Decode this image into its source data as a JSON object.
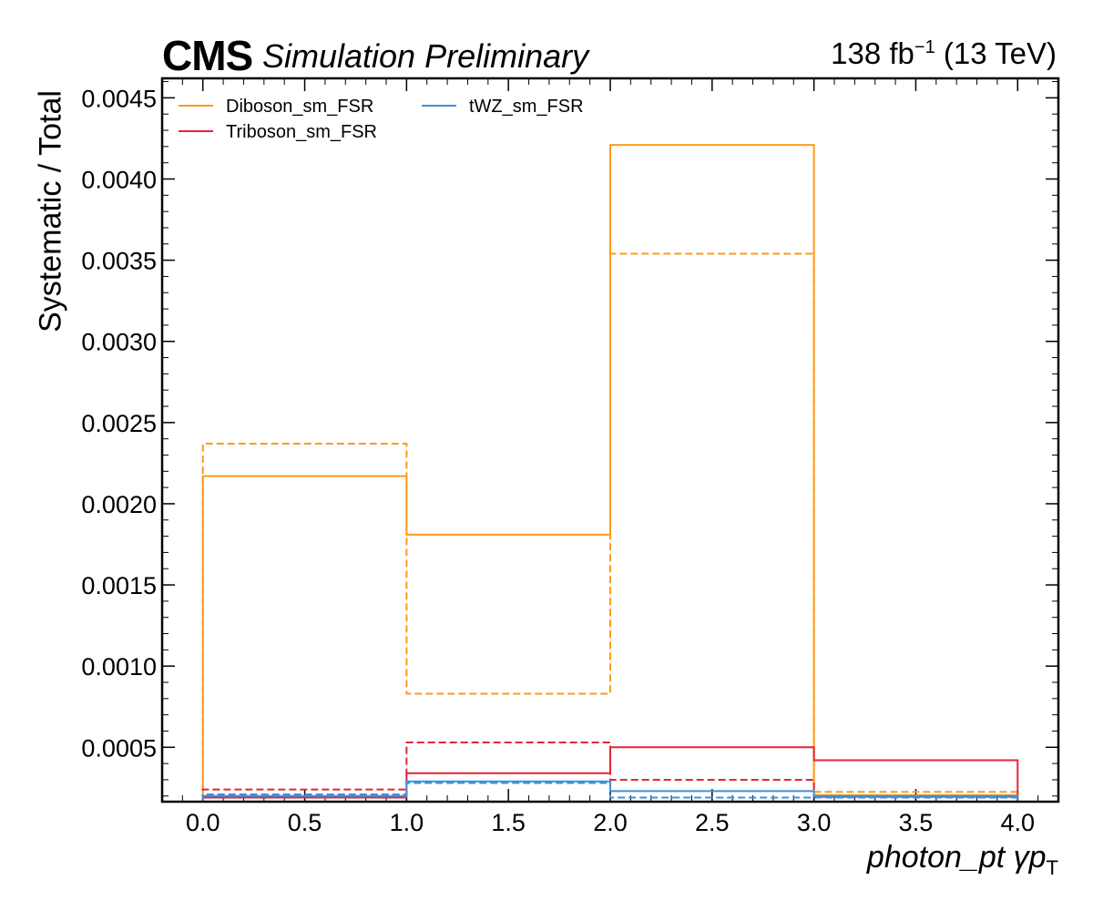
{
  "header": {
    "experiment": "CMS",
    "status": "Simulation Preliminary",
    "lumi_value": "138 fb",
    "lumi_exp": "−1",
    "energy": "(13 TeV)"
  },
  "chart_data": {
    "type": "step",
    "xlabel": "photon_pt   γp",
    "xlabel_sub": "T",
    "ylabel": "Systematic / Total",
    "xlim": [
      -0.2,
      4.2
    ],
    "ylim": [
      0.000165,
      0.00462
    ],
    "x_ticks": [
      "0.0",
      "0.5",
      "1.0",
      "1.5",
      "2.0",
      "2.5",
      "3.0",
      "3.5",
      "4.0"
    ],
    "y_ticks": [
      "0.0005",
      "0.0010",
      "0.0015",
      "0.0020",
      "0.0025",
      "0.0030",
      "0.0035",
      "0.0040",
      "0.0045"
    ],
    "bin_edges": [
      0,
      1,
      2,
      3,
      4
    ],
    "legend": {
      "placement": "top-left",
      "ncol": 2
    },
    "series": [
      {
        "name": "Diboson_sm_FSR",
        "color": "#ff9a1a",
        "up": [
          0.00217,
          0.00181,
          0.00421,
          0.000205
        ],
        "down": [
          0.00237,
          0.00083,
          0.00354,
          0.000225
        ]
      },
      {
        "name": "Triboson_sm_FSR",
        "color": "#e42536",
        "up": [
          0.00019,
          0.00034,
          0.0005,
          0.00042
        ],
        "down": [
          0.00024,
          0.00053,
          0.0003,
          0.000195
        ]
      },
      {
        "name": "tWZ_sm_FSR",
        "color": "#3f90da",
        "up": [
          0.0002,
          0.00029,
          0.00023,
          0.0002
        ],
        "down": [
          0.00021,
          0.00028,
          0.00019,
          0.00019
        ]
      }
    ]
  }
}
